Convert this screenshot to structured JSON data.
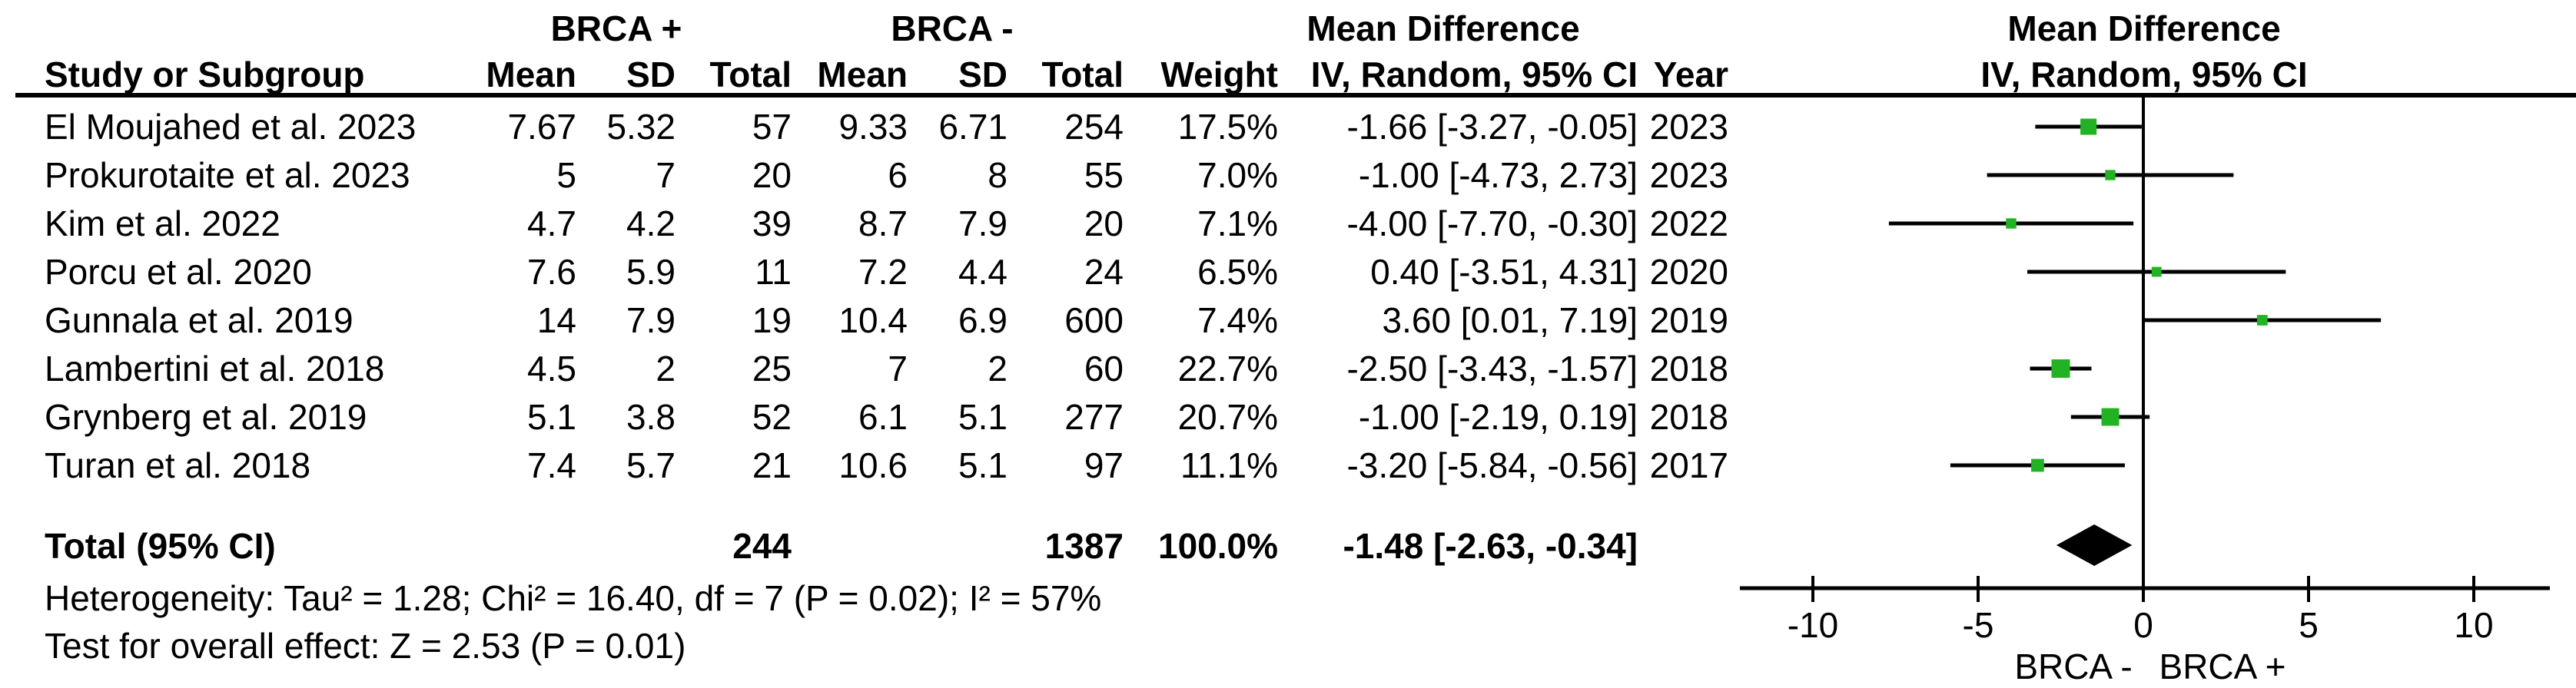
{
  "table": {
    "groups": {
      "brca_plus": "BRCA +",
      "brca_minus": "BRCA -",
      "mean_difference": "Mean Difference"
    },
    "header": {
      "study": "Study or Subgroup",
      "mean": "Mean",
      "sd": "SD",
      "total": "Total",
      "weight": "Weight",
      "iv": "IV, Random, 95% CI",
      "year": "Year"
    },
    "rows": [
      {
        "study": "El Moujahed et al. 2023",
        "mean1": "7.67",
        "sd1": "5.32",
        "total1": "57",
        "mean2": "9.33",
        "sd2": "6.71",
        "total2": "254",
        "weight": "17.5%",
        "ci": "-1.66 [-3.27, -0.05]",
        "year": "2023"
      },
      {
        "study": "Prokurotaite et al. 2023",
        "mean1": "5",
        "sd1": "7",
        "total1": "20",
        "mean2": "6",
        "sd2": "8",
        "total2": "55",
        "weight": "7.0%",
        "ci": "-1.00 [-4.73, 2.73]",
        "year": "2023"
      },
      {
        "study": "Kim et al. 2022",
        "mean1": "4.7",
        "sd1": "4.2",
        "total1": "39",
        "mean2": "8.7",
        "sd2": "7.9",
        "total2": "20",
        "weight": "7.1%",
        "ci": "-4.00 [-7.70, -0.30]",
        "year": "2022"
      },
      {
        "study": "Porcu et al. 2020",
        "mean1": "7.6",
        "sd1": "5.9",
        "total1": "11",
        "mean2": "7.2",
        "sd2": "4.4",
        "total2": "24",
        "weight": "6.5%",
        "ci": "0.40 [-3.51, 4.31]",
        "year": "2020"
      },
      {
        "study": "Gunnala et al. 2019",
        "mean1": "14",
        "sd1": "7.9",
        "total1": "19",
        "mean2": "10.4",
        "sd2": "6.9",
        "total2": "600",
        "weight": "7.4%",
        "ci": "3.60 [0.01, 7.19]",
        "year": "2019"
      },
      {
        "study": "Lambertini et al. 2018",
        "mean1": "4.5",
        "sd1": "2",
        "total1": "25",
        "mean2": "7",
        "sd2": "2",
        "total2": "60",
        "weight": "22.7%",
        "ci": "-2.50 [-3.43, -1.57]",
        "year": "2018"
      },
      {
        "study": "Grynberg et al. 2019",
        "mean1": "5.1",
        "sd1": "3.8",
        "total1": "52",
        "mean2": "6.1",
        "sd2": "5.1",
        "total2": "277",
        "weight": "20.7%",
        "ci": "-1.00 [-2.19, 0.19]",
        "year": "2018"
      },
      {
        "study": "Turan et al. 2018",
        "mean1": "7.4",
        "sd1": "5.7",
        "total1": "21",
        "mean2": "10.6",
        "sd2": "5.1",
        "total2": "97",
        "weight": "11.1%",
        "ci": "-3.20 [-5.84, -0.56]",
        "year": "2017"
      }
    ],
    "total_row": {
      "label": "Total (95% CI)",
      "total1": "244",
      "total2": "1387",
      "weight": "100.0%",
      "ci": "-1.48 [-2.63, -0.34]"
    },
    "footnotes": {
      "heterogeneity": "Heterogeneity: Tau² = 1.28; Chi² = 16.40, df = 7 (P = 0.02); I² = 57%",
      "overall_effect": "Test for overall effect: Z = 2.53 (P = 0.01)"
    }
  },
  "plot_header": {
    "line1": "Mean Difference",
    "line2": "IV, Random, 95% CI"
  },
  "chart_data": {
    "type": "scatter",
    "subtype": "forest-plot",
    "title": "Mean Difference",
    "effect_measure": "IV, Random, 95% CI",
    "x_axis": {
      "ticks": [
        -10,
        -5,
        0,
        5,
        10
      ],
      "xlim": [
        -12.2,
        12.3
      ],
      "label_left": "BRCA -",
      "label_right": "BRCA +"
    },
    "studies": [
      {
        "name": "El Moujahed et al. 2023",
        "md": -1.66,
        "ci_low": -3.27,
        "ci_high": -0.05,
        "weight_pct": 17.5
      },
      {
        "name": "Prokurotaite et al. 2023",
        "md": -1.0,
        "ci_low": -4.73,
        "ci_high": 2.73,
        "weight_pct": 7.0
      },
      {
        "name": "Kim et al. 2022",
        "md": -4.0,
        "ci_low": -7.7,
        "ci_high": -0.3,
        "weight_pct": 7.1
      },
      {
        "name": "Porcu et al. 2020",
        "md": 0.4,
        "ci_low": -3.51,
        "ci_high": 4.31,
        "weight_pct": 6.5
      },
      {
        "name": "Gunnala et al. 2019",
        "md": 3.6,
        "ci_low": 0.01,
        "ci_high": 7.19,
        "weight_pct": 7.4
      },
      {
        "name": "Lambertini et al. 2018",
        "md": -2.5,
        "ci_low": -3.43,
        "ci_high": -1.57,
        "weight_pct": 22.7
      },
      {
        "name": "Grynberg et al. 2019",
        "md": -1.0,
        "ci_low": -2.19,
        "ci_high": 0.19,
        "weight_pct": 20.7
      },
      {
        "name": "Turan et al. 2018",
        "md": -3.2,
        "ci_low": -5.84,
        "ci_high": -0.56,
        "weight_pct": 11.1
      }
    ],
    "total": {
      "name": "Total (95% CI)",
      "md": -1.48,
      "ci_low": -2.63,
      "ci_high": -0.34,
      "weight_pct": 100.0
    },
    "marker_color": "#22b324",
    "diamond_color": "#000000",
    "line_color": "#000000"
  }
}
